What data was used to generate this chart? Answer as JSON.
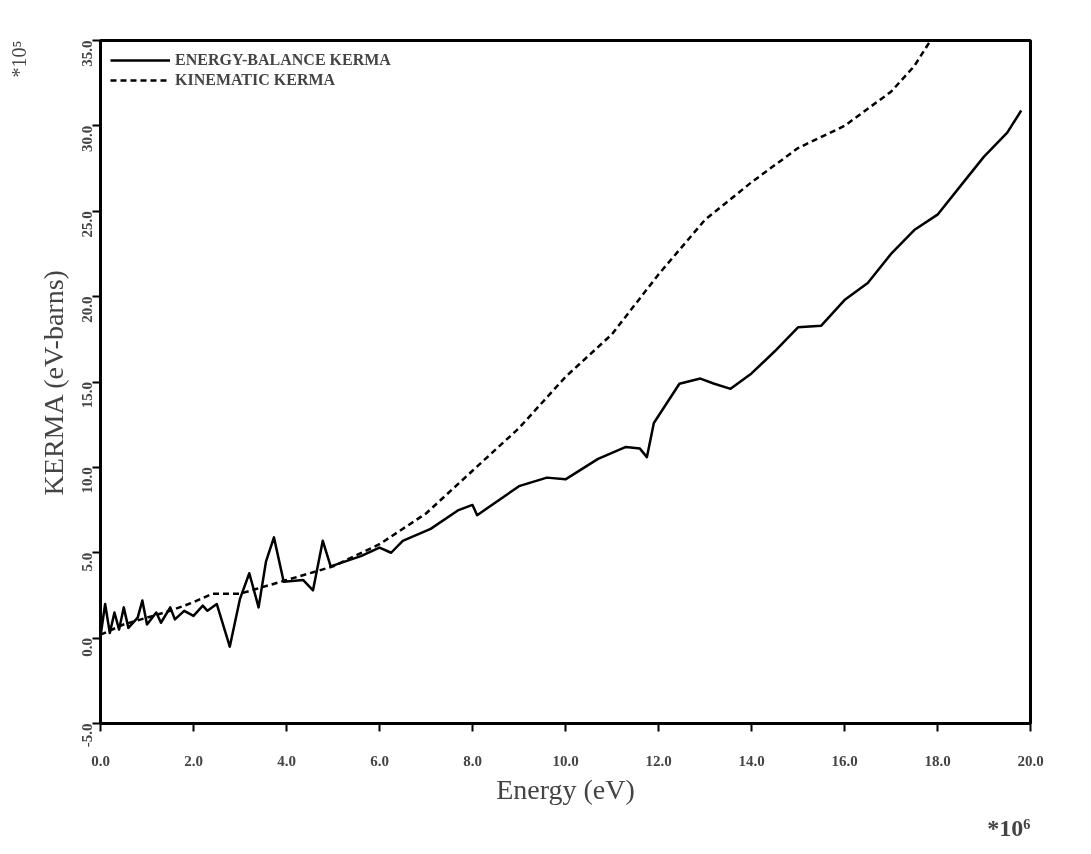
{
  "chart_data": {
    "type": "line",
    "xlabel": "Energy (eV)",
    "ylabel": "KERMA (eV-barns)",
    "annotations": [
      "*10⁵",
      "*10⁶"
    ],
    "xlim": [
      0,
      20
    ],
    "ylim": [
      -5,
      35
    ],
    "xticks": [
      {
        "value": 0,
        "label": "0.0"
      },
      {
        "value": 2,
        "label": "2.0"
      },
      {
        "value": 4,
        "label": "4.0"
      },
      {
        "value": 6,
        "label": "6.0"
      },
      {
        "value": 8,
        "label": "8.0"
      },
      {
        "value": 10,
        "label": "10.0"
      },
      {
        "value": 12,
        "label": "12.0"
      },
      {
        "value": 14,
        "label": "14.0"
      },
      {
        "value": 16,
        "label": "16.0"
      },
      {
        "value": 18,
        "label": "18.0"
      },
      {
        "value": 20,
        "label": "20.0"
      }
    ],
    "yticks": [
      {
        "value": -5,
        "label": "-5.0"
      },
      {
        "value": 0,
        "label": "0.0"
      },
      {
        "value": 5,
        "label": "5.0"
      },
      {
        "value": 10,
        "label": "10.0"
      },
      {
        "value": 15,
        "label": "15.0"
      },
      {
        "value": 20,
        "label": "20.0"
      },
      {
        "value": 25,
        "label": "25.0"
      },
      {
        "value": 30,
        "label": "30.0"
      },
      {
        "value": 35,
        "label": "35.0"
      }
    ],
    "grid": false,
    "legend": "top left",
    "marker": "none",
    "series": [
      {
        "name": "ENERGY-BALANCE KERMA",
        "color": "#000000",
        "line_style": "solid",
        "x": [
          0,
          0.1,
          0.2,
          0.3,
          0.4,
          0.5,
          0.6,
          0.8,
          0.9,
          1.0,
          1.2,
          1.3,
          1.5,
          1.6,
          1.8,
          2.0,
          2.2,
          2.3,
          2.5,
          2.78,
          3.0,
          3.2,
          3.4,
          3.56,
          3.73,
          3.94,
          4.36,
          4.57,
          4.78,
          4.95,
          5.6,
          6.0,
          6.25,
          6.5,
          7.1,
          7.7,
          8.0,
          8.1,
          9.0,
          9.6,
          10.0,
          10.7,
          11.3,
          11.6,
          11.75,
          11.9,
          12.45,
          12.9,
          13.2,
          13.55,
          14.0,
          14.5,
          15.0,
          15.5,
          16.0,
          16.5,
          17.0,
          17.5,
          18.0,
          18.5,
          19.0,
          19.5,
          19.8
        ],
        "values": [
          0.1,
          2.0,
          0.3,
          1.5,
          0.5,
          1.8,
          0.6,
          1.2,
          2.2,
          0.8,
          1.5,
          0.9,
          1.8,
          1.1,
          1.6,
          1.3,
          1.9,
          1.6,
          2.0,
          -0.5,
          2.3,
          3.8,
          1.8,
          4.5,
          5.9,
          3.3,
          3.4,
          2.8,
          5.7,
          4.2,
          4.8,
          5.3,
          5.0,
          5.7,
          6.4,
          7.5,
          7.8,
          7.2,
          8.9,
          9.4,
          9.3,
          10.5,
          11.2,
          11.1,
          10.6,
          12.6,
          14.9,
          15.2,
          14.9,
          14.6,
          15.5,
          16.8,
          18.2,
          18.3,
          19.8,
          20.8,
          22.5,
          23.9,
          24.8,
          26.5,
          28.2,
          29.6,
          30.9
        ]
      },
      {
        "name": "KINEMATIC KERMA",
        "color": "#000000",
        "line_style": "dashed",
        "x": [
          0,
          0.5,
          1.0,
          1.5,
          2.0,
          2.4,
          3.0,
          3.5,
          4.0,
          4.5,
          5.0,
          6.0,
          7.0,
          8.0,
          9.0,
          10.0,
          11.0,
          12.0,
          13.0,
          14.0,
          15.0,
          16.0,
          17.0,
          17.5,
          17.85
        ],
        "values": [
          0.2,
          0.8,
          1.2,
          1.6,
          2.1,
          2.6,
          2.6,
          3.0,
          3.4,
          3.8,
          4.2,
          5.5,
          7.3,
          9.8,
          12.3,
          15.3,
          17.8,
          21.3,
          24.5,
          26.7,
          28.7,
          30.0,
          32.0,
          33.5,
          35.0
        ]
      }
    ]
  }
}
